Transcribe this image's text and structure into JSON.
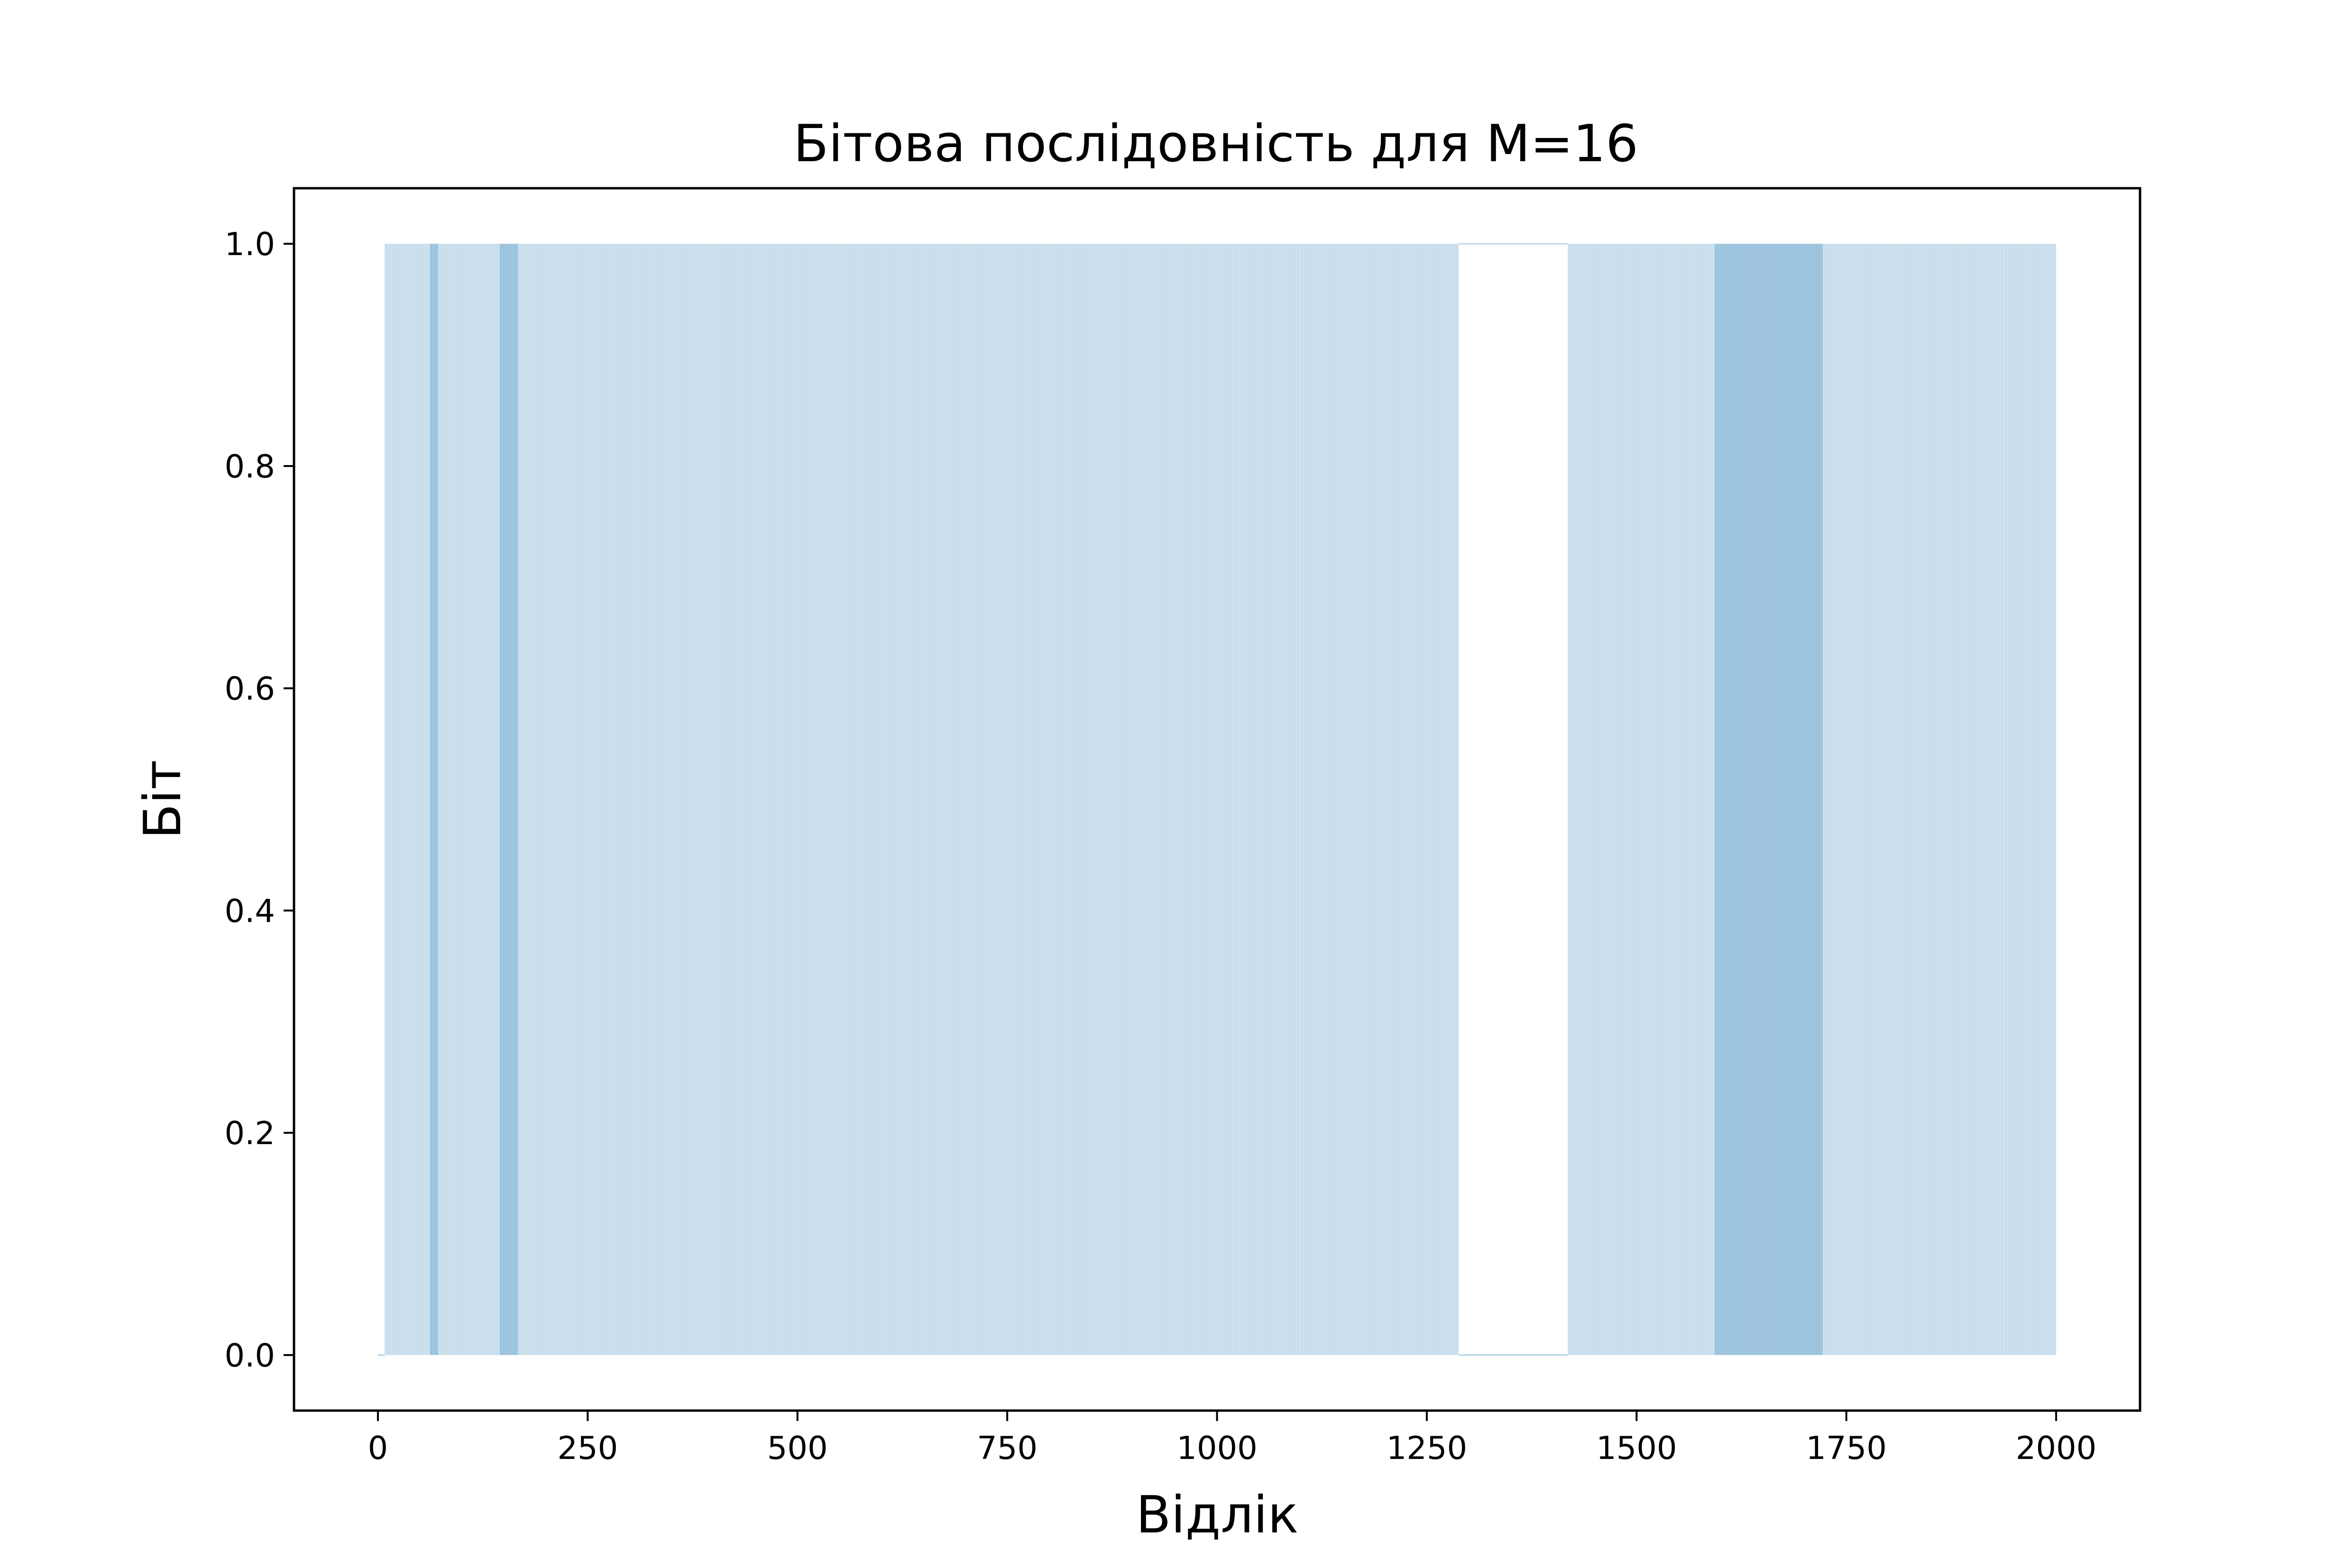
{
  "chart_data": {
    "type": "area",
    "title": "Бітова послідовність для M=16",
    "xlabel": "Відлік",
    "ylabel": "Біт",
    "xlim": [
      -100,
      2100
    ],
    "ylim": [
      -0.05,
      1.05
    ],
    "x_ticks": [
      0,
      250,
      500,
      750,
      1000,
      1250,
      1500,
      1750,
      2000
    ],
    "x_tick_labels": [
      "0",
      "250",
      "500",
      "750",
      "1000",
      "1250",
      "1500",
      "1750",
      "2000"
    ],
    "y_ticks": [
      0.0,
      0.2,
      0.4,
      0.6,
      0.8,
      1.0
    ],
    "y_tick_labels": [
      "0.0",
      "0.2",
      "0.4",
      "0.6",
      "0.8",
      "1.0"
    ],
    "grid": false,
    "legend": "none",
    "x_range": [
      0,
      2000
    ],
    "series": [
      {
        "style": "filled step, alpha 0.3",
        "color": "#1f77b4",
        "one_intervals": [
          [
            8,
            62
          ],
          [
            62,
            72
          ],
          [
            72,
            145
          ],
          [
            145,
            167
          ],
          [
            167,
            1288
          ],
          [
            1418,
            1593
          ],
          [
            1593,
            1722
          ],
          [
            1722,
            2000
          ]
        ],
        "density_levels": [
          1,
          2,
          1,
          2,
          1,
          1,
          2,
          1
        ],
        "zero_intervals": [
          [
            0,
            8
          ],
          [
            1288,
            1418
          ]
        ]
      }
    ],
    "colors": {
      "fill": "#1f77b4",
      "axes": "#000000",
      "background": "#ffffff"
    }
  }
}
